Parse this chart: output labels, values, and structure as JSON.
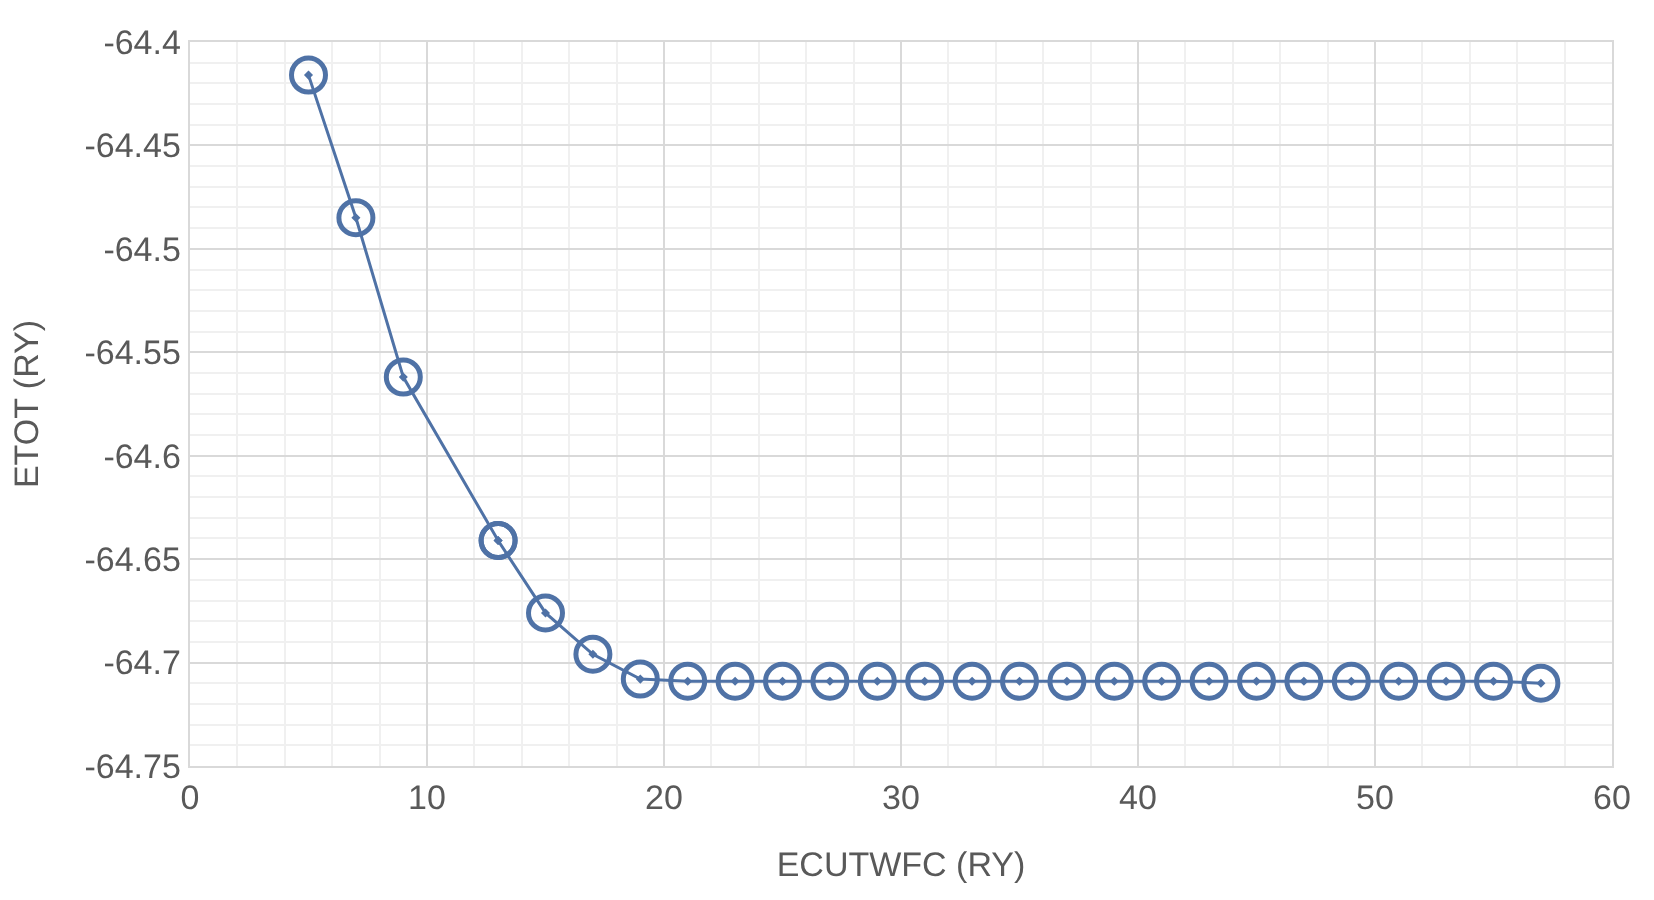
{
  "chart_data": {
    "type": "line",
    "xlabel": "ECUTWFC (RY)",
    "ylabel": "ETOT (RY)",
    "x": [
      5,
      7,
      9,
      13,
      13,
      15,
      17,
      19,
      21,
      23,
      25,
      27,
      29,
      31,
      33,
      35,
      37,
      39,
      41,
      43,
      45,
      47,
      49,
      51,
      53,
      55,
      57
    ],
    "series": [
      {
        "color": "#4f72a6",
        "values": [
          -64.416,
          -64.485,
          -64.562,
          -64.641,
          -64.641,
          -64.676,
          -64.696,
          -64.708,
          -64.709,
          -64.709,
          -64.709,
          -64.709,
          -64.709,
          -64.709,
          -64.709,
          -64.709,
          -64.709,
          -64.709,
          -64.709,
          -64.709,
          -64.709,
          -64.709,
          -64.709,
          -64.709,
          -64.709,
          -64.709,
          -64.71
        ]
      }
    ],
    "xlim": [
      0,
      60
    ],
    "xticks": [
      0,
      10,
      20,
      30,
      40,
      50,
      60
    ],
    "ylim": [
      -64.75,
      -64.4
    ],
    "yticks": [
      -64.75,
      -64.7,
      -64.65,
      -64.6,
      -64.55,
      -64.5,
      -64.45,
      -64.4
    ],
    "grid": true,
    "marker": "circle",
    "line_style": "solid"
  }
}
